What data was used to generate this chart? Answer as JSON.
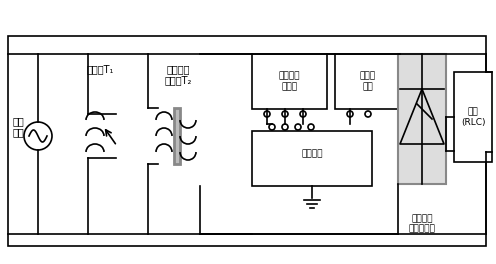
{
  "fig_width": 4.96,
  "fig_height": 2.64,
  "dpi": 100,
  "bg_color": "#ffffff",
  "line_color": "#000000",
  "box_color": "#888888",
  "labels": {
    "gong_pin": "工频\n电源",
    "tiao_ya": "调压器T₁",
    "dan_xiang": "单相降压\n变压器T₂",
    "dai_jian": "待检电流\n互感器",
    "tong_zhou": "同轴分\n流器",
    "ce_liang": "测量装置",
    "fu_zai": "负载\n(RLC)",
    "dan_xiang_bridge": "单相全控\n整流桥负荷"
  }
}
